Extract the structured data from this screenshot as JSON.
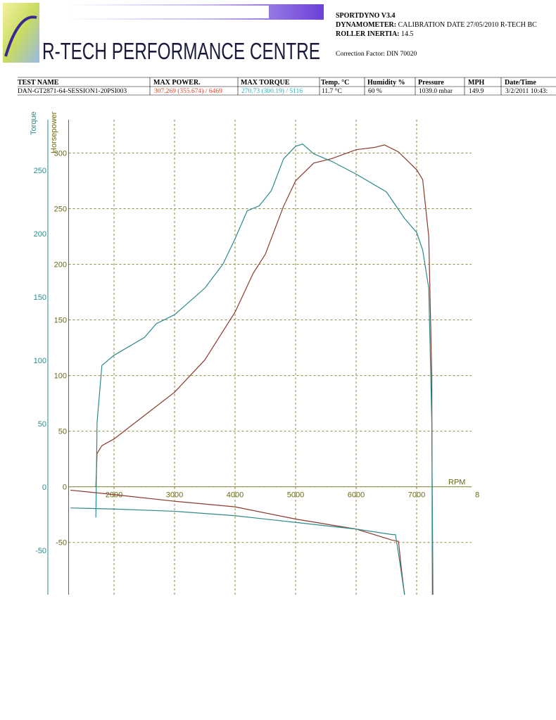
{
  "header": {
    "title": "R-TECH PERFORMANCE CENTRE",
    "software": "SPORTDYNO V3.4",
    "dynamometer": {
      "label": "DYNAMOMETER:",
      "value": "CALIBRATION DATE 27/05/2010 R-TECH BC"
    },
    "roller_inertia": {
      "label": "ROLLER INERTIA:",
      "value": "14.5"
    },
    "correction_factor": "Correction Factor: DIN 70020"
  },
  "table": {
    "columns": [
      "TEST NAME",
      "MAX POWER.",
      "MAX TORQUE",
      "Temp. °C",
      "Humidity %",
      "Pressure",
      "MPH",
      "Date/Time"
    ],
    "rows": [
      [
        "DAN-GT2871-64-SESSION1-20PSI003",
        "307.269 (355.674) / 6469",
        "270.73 (300.19) / 5116",
        "11.7 °C",
        "60 %",
        "1039.0 mbar",
        "149.9",
        "3/2/2011 10:43:"
      ]
    ]
  },
  "chart_data": {
    "type": "line",
    "y_label": "Horsepower",
    "y2_label": "Torque",
    "x_label": "RPM",
    "xlim": [
      1250,
      8000
    ],
    "xticks": [
      2000,
      3000,
      4000,
      5000,
      6000,
      7000,
      {
        "value": 8000,
        "label": "8"
      }
    ],
    "ylim": [
      -97,
      330
    ],
    "yticks": [
      -50,
      0,
      50,
      100,
      150,
      200,
      250,
      300
    ],
    "y2lim": [
      -85,
      290
    ],
    "y2ticks": [
      -50,
      0,
      50,
      100,
      150,
      200,
      250
    ],
    "grid": true,
    "series": [
      {
        "color": "#8b3a2e",
        "axis": "y",
        "x": [
          1700,
          1720,
          1800,
          2000,
          2500,
          3000,
          3500,
          4000,
          4300,
          4500,
          4800,
          5000,
          5300,
          5600,
          6000,
          6300,
          6469,
          6700,
          7000,
          7100,
          7200,
          7250,
          7260
        ],
        "values": [
          0,
          30,
          37,
          43,
          64,
          85,
          114,
          157,
          192,
          209,
          252,
          275,
          291,
          295,
          303,
          305,
          307.269,
          301,
          285,
          276,
          225,
          100,
          -97
        ]
      },
      {
        "color": "#2e8a8a",
        "axis": "y2",
        "x": [
          1700,
          1720,
          1800,
          1850,
          2000,
          2500,
          2700,
          3000,
          3500,
          3800,
          4000,
          4200,
          4400,
          4600,
          4800,
          5000,
          5116,
          5300,
          5600,
          6000,
          6500,
          6800,
          7000,
          7100,
          7200,
          7250,
          7270
        ],
        "values": [
          -24,
          51,
          96,
          98,
          104,
          118,
          129,
          136,
          157,
          176,
          196,
          218,
          222,
          234,
          259,
          269,
          270.73,
          263,
          257,
          247,
          233,
          212,
          201,
          187,
          157,
          51,
          -85
        ]
      },
      {
        "color": "#8b3a2e",
        "axis": "y",
        "x": [
          1280,
          2000,
          3000,
          4000,
          5000,
          6000,
          6600,
          6700,
          6750,
          6800
        ],
        "values": [
          -3,
          -7,
          -13,
          -18,
          -29,
          -38,
          -48,
          -49,
          -75,
          -97
        ]
      },
      {
        "color": "#2e8a8a",
        "axis": "y",
        "x": [
          1280,
          2000,
          3000,
          4000,
          5000,
          6000,
          6600,
          6650,
          6700,
          6800
        ],
        "values": [
          -19,
          -20,
          -22,
          -26,
          -32,
          -38,
          -43,
          -43,
          -60,
          -97
        ]
      }
    ]
  }
}
